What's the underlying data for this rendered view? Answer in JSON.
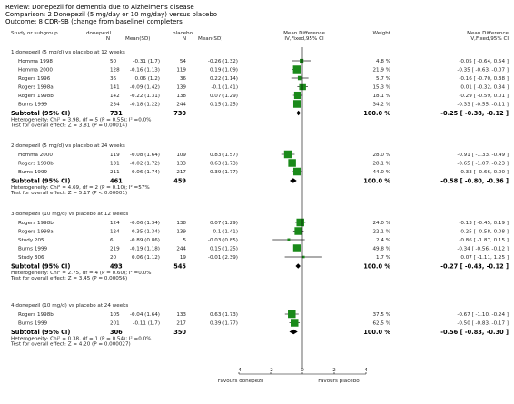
{
  "header": {
    "review": "Review:  Donepezil for dementia due to Alzheimer's disease",
    "comparison": "Comparison:  2 Donepezil (5 mg/day or 10 mg/day) versus placebo",
    "outcome": "Outcome:  8 CDR-SB (change from baseline) completers"
  },
  "columns": {
    "study": "Study or subgroup",
    "treat": "donepezil",
    "treat_n": "N",
    "treat_mean": "Mean(SD)",
    "ctrl": "placebo",
    "ctrl_n": "N",
    "ctrl_mean": "Mean(SD)",
    "md": "Mean Difference",
    "md_sub": "IV,Fixed,95% CI",
    "weight": "Weight",
    "md2": "Mean Difference",
    "md2_sub": "IV,Fixed,95% CI"
  },
  "chart_data": {
    "type": "forest",
    "axis": {
      "ticks": [
        -4,
        -2,
        0,
        2,
        4
      ],
      "tick_labels": [
        "-4",
        "-2",
        "0",
        "2",
        "4"
      ],
      "range": [
        -4,
        4
      ]
    },
    "favours_left": "Favours donepezil",
    "favours_right": "Favours placebo",
    "colors": {
      "box": "#1a8a1a",
      "text": "#1f1f1f"
    },
    "groups": [
      {
        "title": "1 donepezil (5 mg/d) vs placebo at 12 weeks",
        "studies": [
          {
            "name": "Homma 1998",
            "n1": "50",
            "m1": "-0.31 (1.7)",
            "n2": "54",
            "m2": "-0.26 (1.32)",
            "weight": "4.8 %",
            "ci_text": "-0.05 [ -0.64, 0.54 ]",
            "md": -0.05,
            "lo": -0.64,
            "hi": 0.54
          },
          {
            "name": "Homma 2000",
            "n1": "128",
            "m1": "-0.16 (1.13)",
            "n2": "119",
            "m2": "0.19 (1.09)",
            "weight": "21.9 %",
            "ci_text": "-0.35 [ -0.63, -0.07 ]",
            "md": -0.35,
            "lo": -0.63,
            "hi": -0.07
          },
          {
            "name": "Rogers 1996",
            "n1": "36",
            "m1": "0.06 (1.2)",
            "n2": "36",
            "m2": "0.22 (1.14)",
            "weight": "5.7 %",
            "ci_text": "-0.16 [ -0.70, 0.38 ]",
            "md": -0.16,
            "lo": -0.7,
            "hi": 0.38
          },
          {
            "name": "Rogers 1998a",
            "n1": "141",
            "m1": "-0.09 (1.42)",
            "n2": "139",
            "m2": "-0.1 (1.41)",
            "weight": "15.3 %",
            "ci_text": "0.01 [ -0.32, 0.34 ]",
            "md": 0.01,
            "lo": -0.32,
            "hi": 0.34
          },
          {
            "name": "Rogers 1998b",
            "n1": "142",
            "m1": "-0.22 (1.31)",
            "n2": "138",
            "m2": "0.07 (1.29)",
            "weight": "18.1 %",
            "ci_text": "-0.29 [ -0.59, 0.01 ]",
            "md": -0.29,
            "lo": -0.59,
            "hi": 0.01
          },
          {
            "name": "Burns 1999",
            "n1": "234",
            "m1": "-0.18 (1.22)",
            "n2": "244",
            "m2": "0.15 (1.25)",
            "weight": "34.2 %",
            "ci_text": "-0.33 [ -0.55, -0.11 ]",
            "md": -0.33,
            "lo": -0.55,
            "hi": -0.11
          }
        ],
        "subtotal": {
          "label": "Subtotal (95% CI)",
          "n1": "731",
          "n2": "730",
          "weight": "100.0 %",
          "ci_text": "-0.25 [ -0.38, -0.12 ]",
          "md": -0.25,
          "lo": -0.38,
          "hi": -0.12
        },
        "heterogeneity": "Heterogeneity: Chi² = 3.98, df = 5 (P = 0.55); I² =0.0%",
        "overall": "Test for overall effect: Z = 3.81 (P = 0.00014)"
      },
      {
        "title": "2 donepezil (5 mg/d) vs placebo at 24 weeks",
        "studies": [
          {
            "name": "Homma 2000",
            "n1": "119",
            "m1": "-0.08 (1.64)",
            "n2": "109",
            "m2": "0.83 (1.57)",
            "weight": "28.0 %",
            "ci_text": "-0.91 [ -1.33, -0.49 ]",
            "md": -0.91,
            "lo": -1.33,
            "hi": -0.49
          },
          {
            "name": "Rogers 1998b",
            "n1": "131",
            "m1": "-0.02 (1.72)",
            "n2": "133",
            "m2": "0.63 (1.73)",
            "weight": "28.1 %",
            "ci_text": "-0.65 [ -1.07, -0.23 ]",
            "md": -0.65,
            "lo": -1.07,
            "hi": -0.23
          },
          {
            "name": "Burns 1999",
            "n1": "211",
            "m1": "0.06 (1.74)",
            "n2": "217",
            "m2": "0.39 (1.77)",
            "weight": "44.0 %",
            "ci_text": "-0.33 [ -0.66, 0.00 ]",
            "md": -0.33,
            "lo": -0.66,
            "hi": 0.0
          }
        ],
        "subtotal": {
          "label": "Subtotal (95% CI)",
          "n1": "461",
          "n2": "459",
          "weight": "100.0 %",
          "ci_text": "-0.58 [ -0.80, -0.36 ]",
          "md": -0.58,
          "lo": -0.8,
          "hi": -0.36
        },
        "heterogeneity": "Heterogeneity: Chi² = 4.69, df = 2 (P = 0.10); I² =57%",
        "overall": "Test for overall effect: Z = 5.17 (P < 0.00001)"
      },
      {
        "title": "3 donepezil (10 mg/d) vs placebo at 12 weeks",
        "studies": [
          {
            "name": "Rogers 1998b",
            "n1": "124",
            "m1": "-0.06 (1.34)",
            "n2": "138",
            "m2": "0.07 (1.29)",
            "weight": "24.0 %",
            "ci_text": "-0.13 [ -0.45, 0.19 ]",
            "md": -0.13,
            "lo": -0.45,
            "hi": 0.19
          },
          {
            "name": "Rogers 1998a",
            "n1": "124",
            "m1": "-0.35 (1.34)",
            "n2": "139",
            "m2": "-0.1 (1.41)",
            "weight": "22.1 %",
            "ci_text": "-0.25 [ -0.58, 0.08 ]",
            "md": -0.25,
            "lo": -0.58,
            "hi": 0.08
          },
          {
            "name": "Study 205",
            "n1": "6",
            "m1": "-0.89 (0.86)",
            "n2": "5",
            "m2": "-0.03 (0.85)",
            "weight": "2.4 %",
            "ci_text": "-0.86 [ -1.87, 0.15 ]",
            "md": -0.86,
            "lo": -1.87,
            "hi": 0.15
          },
          {
            "name": "Burns 1999",
            "n1": "219",
            "m1": "-0.19 (1.18)",
            "n2": "244",
            "m2": "0.15 (1.25)",
            "weight": "49.8 %",
            "ci_text": "-0.34 [ -0.56, -0.12 ]",
            "md": -0.34,
            "lo": -0.56,
            "hi": -0.12
          },
          {
            "name": "Study 306",
            "n1": "20",
            "m1": "0.06 (1.12)",
            "n2": "19",
            "m2": "-0.01 (2.39)",
            "weight": "1.7 %",
            "ci_text": "0.07 [ -1.11, 1.25 ]",
            "md": 0.07,
            "lo": -1.11,
            "hi": 1.25
          }
        ],
        "subtotal": {
          "label": "Subtotal (95% CI)",
          "n1": "493",
          "n2": "545",
          "weight": "100.0 %",
          "ci_text": "-0.27 [ -0.43, -0.12 ]",
          "md": -0.27,
          "lo": -0.43,
          "hi": -0.12
        },
        "heterogeneity": "Heterogeneity: Chi² = 2.75, df = 4 (P = 0.60); I² =0.0%",
        "overall": "Test for overall effect: Z = 3.45 (P = 0.00056)"
      },
      {
        "title": "4 donepezil (10 mg/d) vs placebo at 24 weeks",
        "studies": [
          {
            "name": "Rogers 1998b",
            "n1": "105",
            "m1": "-0.04 (1.64)",
            "n2": "133",
            "m2": "0.63 (1.73)",
            "weight": "37.5 %",
            "ci_text": "-0.67 [ -1.10, -0.24 ]",
            "md": -0.67,
            "lo": -1.1,
            "hi": -0.24
          },
          {
            "name": "Burns 1999",
            "n1": "201",
            "m1": "-0.11 (1.7)",
            "n2": "217",
            "m2": "0.39 (1.77)",
            "weight": "62.5 %",
            "ci_text": "-0.50 [ -0.83, -0.17 ]",
            "md": -0.5,
            "lo": -0.83,
            "hi": -0.17
          }
        ],
        "subtotal": {
          "label": "Subtotal (95% CI)",
          "n1": "306",
          "n2": "350",
          "weight": "100.0 %",
          "ci_text": "-0.56 [ -0.83, -0.30 ]",
          "md": -0.56,
          "lo": -0.83,
          "hi": -0.3
        },
        "heterogeneity": "Heterogeneity: Chi² = 0.38, df = 1 (P = 0.54); I² =0.0%",
        "overall": "Test for overall effect: Z = 4.20 (P = 0.000027)"
      }
    ]
  }
}
